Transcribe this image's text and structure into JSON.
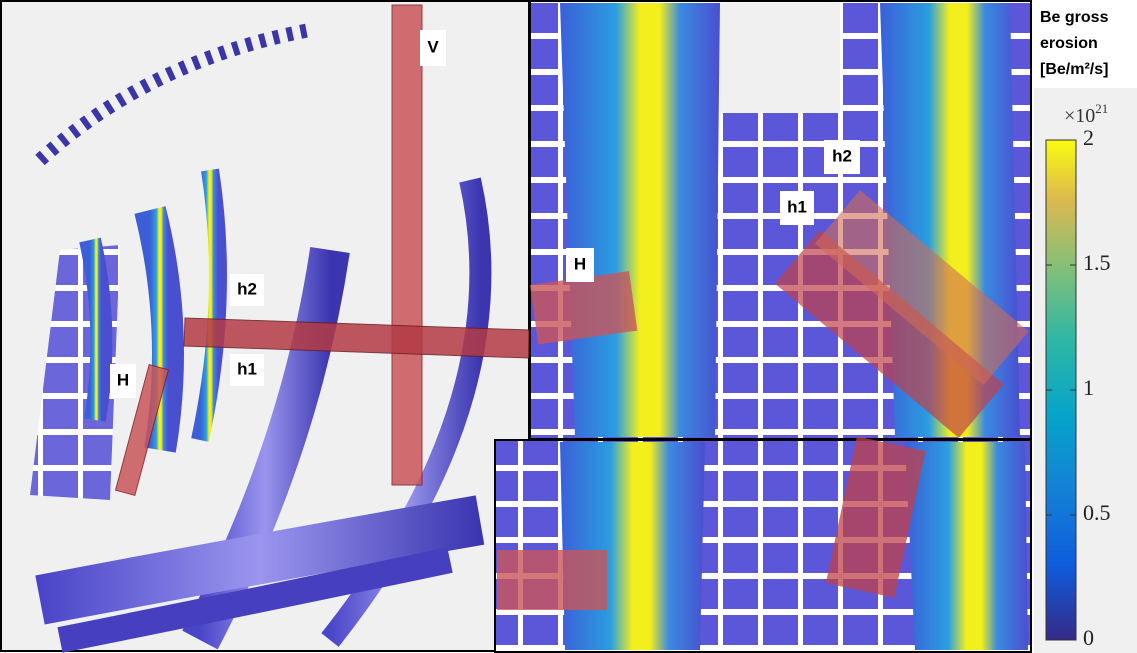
{
  "views": {
    "main": {
      "labels": [
        "V",
        "h2",
        "h1",
        "H"
      ]
    },
    "zoom_top": {
      "labels": [
        "h2",
        "h1",
        "H"
      ]
    }
  },
  "colorbar": {
    "title": [
      "Be gross",
      "erosion",
      "[Be/m²/s]"
    ],
    "multiplier": {
      "base": "×10",
      "exponent": "21"
    },
    "lim": [
      0,
      2
    ],
    "ticks": [
      0,
      0.5,
      1,
      1.5,
      2
    ]
  }
}
